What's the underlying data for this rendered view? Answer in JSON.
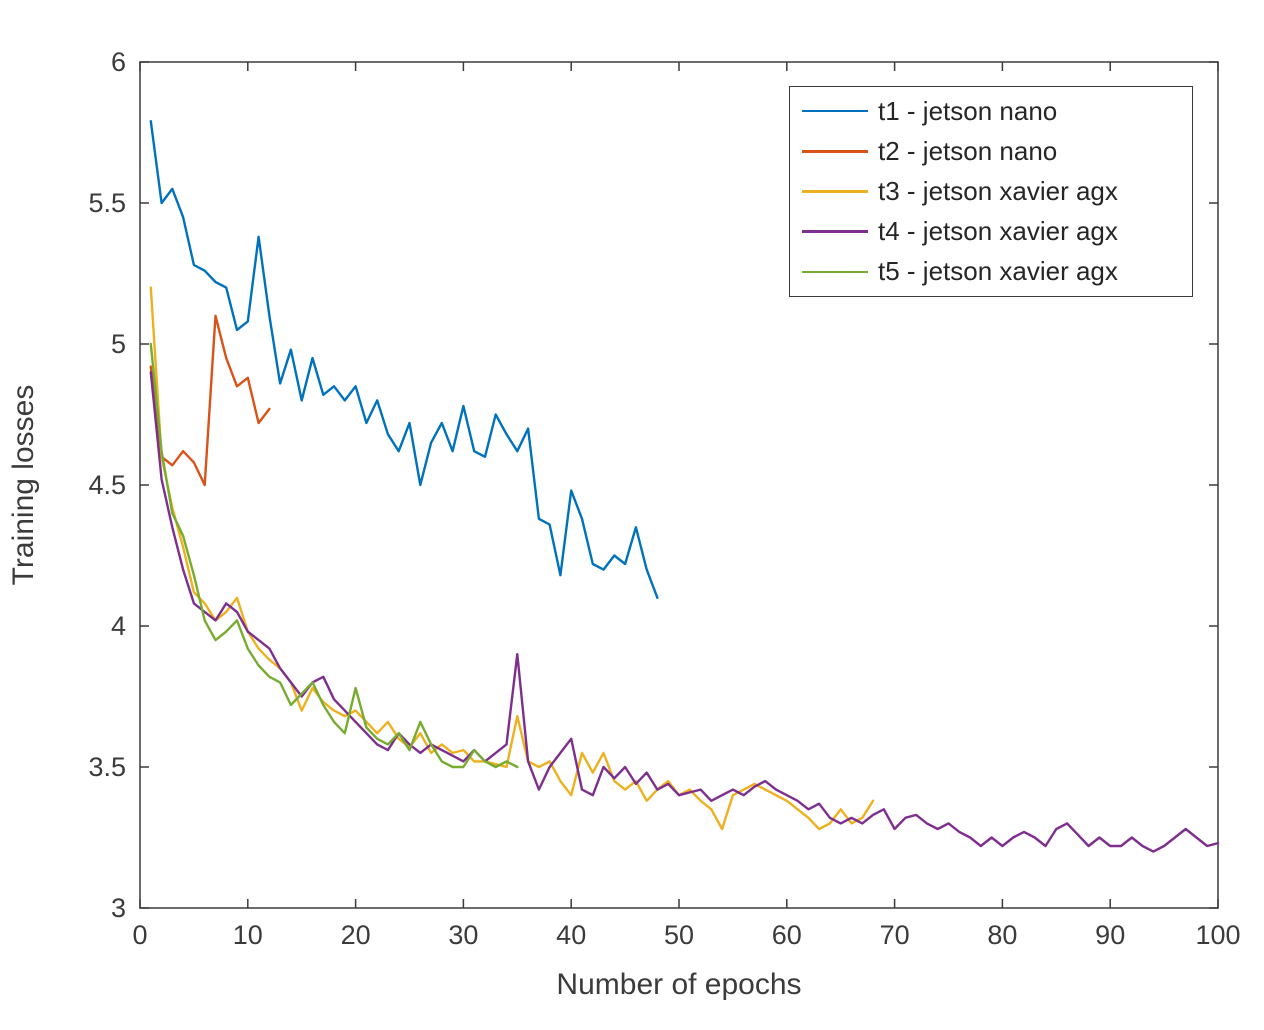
{
  "figure": {
    "background": "#ffffff",
    "axis_color": "#3b3b3b",
    "text_color": "#3b3b3b"
  },
  "chart_data": {
    "type": "line",
    "title": "",
    "xlabel": "Number of epochs",
    "ylabel": "Training losses",
    "xlim": [
      0,
      100
    ],
    "ylim": [
      3,
      6
    ],
    "x_ticks": [
      0,
      10,
      20,
      30,
      40,
      50,
      60,
      70,
      80,
      90,
      100
    ],
    "y_ticks": [
      3,
      3.5,
      4,
      4.5,
      5,
      5.5,
      6
    ],
    "grid": false,
    "legend_position": "top-right",
    "series": [
      {
        "name": "t1 - jetson nano",
        "color": "#0072BD",
        "x_start": 1,
        "values": [
          5.79,
          5.5,
          5.55,
          5.45,
          5.28,
          5.26,
          5.22,
          5.2,
          5.05,
          5.08,
          5.38,
          5.1,
          4.86,
          4.98,
          4.8,
          4.95,
          4.82,
          4.85,
          4.8,
          4.85,
          4.72,
          4.8,
          4.68,
          4.62,
          4.72,
          4.5,
          4.65,
          4.72,
          4.62,
          4.78,
          4.62,
          4.6,
          4.75,
          4.68,
          4.62,
          4.7,
          4.38,
          4.36,
          4.18,
          4.48,
          4.38,
          4.22,
          4.2,
          4.25,
          4.22,
          4.35,
          4.2,
          4.1
        ]
      },
      {
        "name": "t2 - jetson nano",
        "color": "#D95319",
        "x_start": 1,
        "values": [
          4.92,
          4.6,
          4.57,
          4.62,
          4.58,
          4.5,
          5.1,
          4.95,
          4.85,
          4.88,
          4.72,
          4.77
        ]
      },
      {
        "name": "t3 - jetson xavier agx",
        "color": "#EDB120",
        "x_start": 1,
        "values": [
          5.2,
          4.6,
          4.42,
          4.28,
          4.12,
          4.08,
          4.02,
          4.05,
          4.1,
          3.98,
          3.92,
          3.88,
          3.85,
          3.8,
          3.7,
          3.78,
          3.73,
          3.7,
          3.68,
          3.7,
          3.66,
          3.62,
          3.66,
          3.6,
          3.57,
          3.62,
          3.55,
          3.58,
          3.55,
          3.56,
          3.52,
          3.52,
          3.51,
          3.5,
          3.68,
          3.52,
          3.5,
          3.52,
          3.45,
          3.4,
          3.55,
          3.48,
          3.55,
          3.45,
          3.42,
          3.45,
          3.38,
          3.42,
          3.45,
          3.4,
          3.42,
          3.38,
          3.35,
          3.28,
          3.4,
          3.42,
          3.44,
          3.42,
          3.4,
          3.38,
          3.35,
          3.32,
          3.28,
          3.3,
          3.35,
          3.3,
          3.32,
          3.38
        ]
      },
      {
        "name": "t4 - jetson xavier agx",
        "color": "#7E2F8E",
        "x_start": 1,
        "values": [
          4.9,
          4.52,
          4.35,
          4.2,
          4.08,
          4.05,
          4.02,
          4.08,
          4.05,
          3.98,
          3.95,
          3.92,
          3.85,
          3.8,
          3.75,
          3.8,
          3.82,
          3.74,
          3.7,
          3.66,
          3.62,
          3.58,
          3.56,
          3.62,
          3.58,
          3.55,
          3.58,
          3.56,
          3.54,
          3.52,
          3.56,
          3.52,
          3.55,
          3.58,
          3.9,
          3.52,
          3.42,
          3.5,
          3.55,
          3.6,
          3.42,
          3.4,
          3.5,
          3.46,
          3.5,
          3.44,
          3.48,
          3.42,
          3.44,
          3.4,
          3.41,
          3.42,
          3.38,
          3.4,
          3.42,
          3.4,
          3.43,
          3.45,
          3.42,
          3.4,
          3.38,
          3.35,
          3.37,
          3.32,
          3.3,
          3.32,
          3.3,
          3.33,
          3.35,
          3.28,
          3.32,
          3.33,
          3.3,
          3.28,
          3.3,
          3.27,
          3.25,
          3.22,
          3.25,
          3.22,
          3.25,
          3.27,
          3.25,
          3.22,
          3.28,
          3.3,
          3.26,
          3.22,
          3.25,
          3.22,
          3.22,
          3.25,
          3.22,
          3.2,
          3.22,
          3.25,
          3.28,
          3.25,
          3.22,
          3.23
        ]
      },
      {
        "name": "t5 - jetson xavier agx",
        "color": "#77AC30",
        "x_start": 1,
        "values": [
          5.0,
          4.62,
          4.4,
          4.32,
          4.18,
          4.02,
          3.95,
          3.98,
          4.02,
          3.92,
          3.86,
          3.82,
          3.8,
          3.72,
          3.76,
          3.8,
          3.72,
          3.66,
          3.62,
          3.78,
          3.64,
          3.6,
          3.58,
          3.62,
          3.56,
          3.66,
          3.58,
          3.52,
          3.5,
          3.5,
          3.56,
          3.52,
          3.5,
          3.52,
          3.5
        ]
      }
    ]
  }
}
